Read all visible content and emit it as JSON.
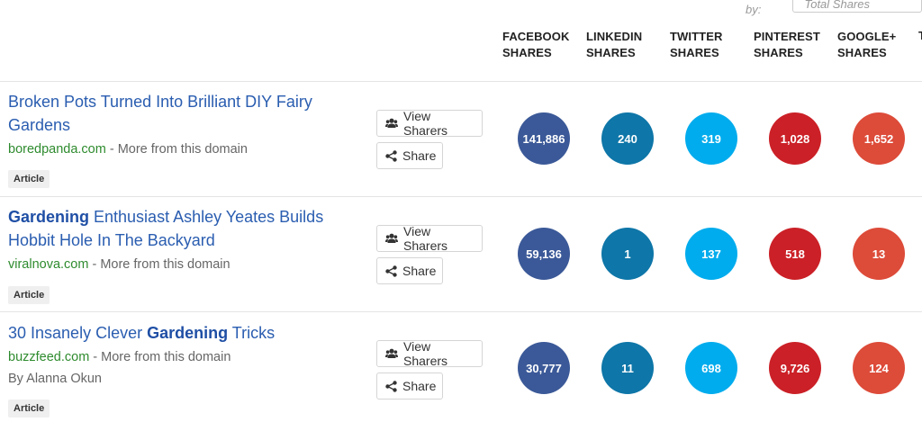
{
  "sort": {
    "label": "Sort by:",
    "selected": "Total Shares"
  },
  "columns": [
    {
      "line1": "FACEBOOK",
      "line2": "SHARES"
    },
    {
      "line1": "LINKEDIN",
      "line2": "SHARES"
    },
    {
      "line1": "TWITTER",
      "line2": "SHARES"
    },
    {
      "line1": "PINTEREST",
      "line2": "SHARES"
    },
    {
      "line1": "GOOGLE+",
      "line2": "SHARES"
    }
  ],
  "column_cut": "T",
  "colors": {
    "facebook": "#3b5998",
    "linkedin": "#0e76a8",
    "twitter": "#00aced",
    "pinterest": "#cb2027",
    "googleplus": "#dd4b39",
    "link": "#2a5db0",
    "domain": "#2e8b2e"
  },
  "icons": {
    "view_sharers": "users-icon",
    "share": "share-icon"
  },
  "buttons": {
    "view_sharers": "View Sharers",
    "share": "Share"
  },
  "articles": [
    {
      "title_pre": "Broken Pots Turned Into Brilliant DIY Fairy Gardens",
      "title_bold": "",
      "title_post": "",
      "domain": "boredpanda.com",
      "more": " - More from this domain",
      "author": "",
      "badge": "Article",
      "shares": [
        "141,886",
        "240",
        "319",
        "1,028",
        "1,652"
      ]
    },
    {
      "title_pre": "",
      "title_bold": "Gardening",
      "title_post": " Enthusiast Ashley Yeates Builds Hobbit Hole In The Backyard",
      "domain": "viralnova.com",
      "more": " - More from this domain",
      "author": "",
      "badge": "Article",
      "shares": [
        "59,136",
        "1",
        "137",
        "518",
        "13"
      ]
    },
    {
      "title_pre": "30 Insanely Clever ",
      "title_bold": "Gardening",
      "title_post": " Tricks",
      "domain": "buzzfeed.com",
      "more": " - More from this domain",
      "author": "By Alanna Okun",
      "badge": "Article",
      "shares": [
        "30,777",
        "11",
        "698",
        "9,726",
        "124"
      ]
    }
  ]
}
